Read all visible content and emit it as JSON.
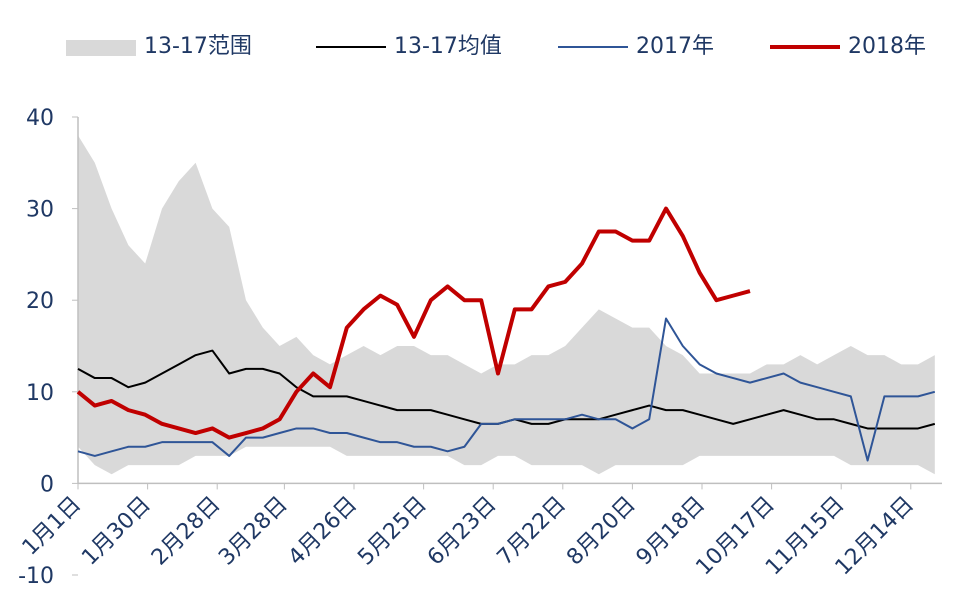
{
  "chart_data": {
    "type": "line",
    "x": [
      0,
      7,
      14,
      21,
      28,
      35,
      42,
      49,
      56,
      63,
      70,
      77,
      84,
      91,
      98,
      105,
      112,
      119,
      126,
      133,
      140,
      147,
      154,
      161,
      168,
      175,
      182,
      189,
      196,
      203,
      210,
      217,
      224,
      231,
      238,
      245,
      252,
      259,
      266,
      273,
      280,
      287,
      294,
      301,
      308,
      315,
      322,
      329,
      336,
      343,
      350,
      357
    ],
    "band": {
      "name": "13-17范围",
      "color": "#d9d9d9",
      "upper": [
        38,
        35,
        30,
        26,
        24,
        30,
        33,
        35,
        30,
        28,
        20,
        17,
        15,
        16,
        14,
        13,
        14,
        15,
        14,
        15,
        15,
        14,
        14,
        13,
        12,
        13,
        13,
        14,
        14,
        15,
        17,
        19,
        18,
        17,
        17,
        15,
        14,
        12,
        12,
        12,
        12,
        13,
        13,
        14,
        13,
        14,
        15,
        14,
        14,
        13,
        13,
        14
      ],
      "lower": [
        4,
        2,
        1,
        2,
        2,
        2,
        2,
        3,
        3,
        3,
        4,
        4,
        4,
        4,
        4,
        4,
        3,
        3,
        3,
        3,
        3,
        3,
        3,
        2,
        2,
        3,
        3,
        2,
        2,
        2,
        2,
        1,
        2,
        2,
        2,
        2,
        2,
        3,
        3,
        3,
        3,
        3,
        3,
        3,
        3,
        3,
        2,
        2,
        2,
        2,
        2,
        1
      ]
    },
    "series": [
      {
        "name": "13-17均值",
        "color": "#000000",
        "width": 2,
        "values": [
          12.5,
          11.5,
          11.5,
          10.5,
          11,
          12,
          13,
          14,
          14.5,
          12,
          12.5,
          12.5,
          12,
          10.5,
          9.5,
          9.5,
          9.5,
          9,
          8.5,
          8,
          8,
          8,
          7.5,
          7,
          6.5,
          6.5,
          7,
          6.5,
          6.5,
          7,
          7,
          7,
          7.5,
          8,
          8.5,
          8,
          8,
          7.5,
          7,
          6.5,
          7,
          7.5,
          8,
          7.5,
          7,
          7,
          6.5,
          6,
          6,
          6,
          6,
          6.5
        ]
      },
      {
        "name": "2017年",
        "color": "#2f5597",
        "width": 2,
        "values": [
          3.5,
          3,
          3.5,
          4,
          4,
          4.5,
          4.5,
          4.5,
          4.5,
          3,
          5,
          5,
          5.5,
          6,
          6,
          5.5,
          5.5,
          5,
          4.5,
          4.5,
          4,
          4,
          3.5,
          4,
          6.5,
          6.5,
          7,
          7,
          7,
          7,
          7.5,
          7,
          7,
          6,
          7,
          18,
          15,
          13,
          12,
          11.5,
          11,
          11.5,
          12,
          11,
          10.5,
          10,
          9.5,
          2.5,
          9.5,
          9.5,
          9.5,
          10
        ]
      },
      {
        "name": "2018年",
        "color": "#c00000",
        "width": 4,
        "values": [
          10,
          8.5,
          9,
          8,
          7.5,
          6.5,
          6,
          5.5,
          6,
          5,
          5.5,
          6,
          7,
          10,
          12,
          10.5,
          17,
          19,
          20.5,
          19.5,
          16,
          20,
          21.5,
          20,
          20,
          12,
          19,
          19,
          21.5,
          22,
          24,
          27.5,
          27.5,
          26.5,
          26.5,
          30,
          27,
          23,
          20,
          20.5,
          21,
          null,
          null,
          null,
          null,
          null,
          null,
          null,
          null,
          null,
          null,
          null
        ]
      }
    ],
    "xlim": [
      0,
      360
    ],
    "xticks": [
      {
        "value": 0,
        "label": "1月1日"
      },
      {
        "value": 29,
        "label": "1月30日"
      },
      {
        "value": 58,
        "label": "2月28日"
      },
      {
        "value": 86,
        "label": "3月28日"
      },
      {
        "value": 115,
        "label": "4月26日"
      },
      {
        "value": 144,
        "label": "5月25日"
      },
      {
        "value": 173,
        "label": "6月23日"
      },
      {
        "value": 202,
        "label": "7月22日"
      },
      {
        "value": 231,
        "label": "8月20日"
      },
      {
        "value": 260,
        "label": "9月18日"
      },
      {
        "value": 289,
        "label": "10月17日"
      },
      {
        "value": 318,
        "label": "11月15日"
      },
      {
        "value": 347,
        "label": "12月14日"
      }
    ],
    "ylim": [
      -10,
      40
    ],
    "yticks": [
      -10,
      0,
      10,
      20,
      30,
      40
    ]
  }
}
